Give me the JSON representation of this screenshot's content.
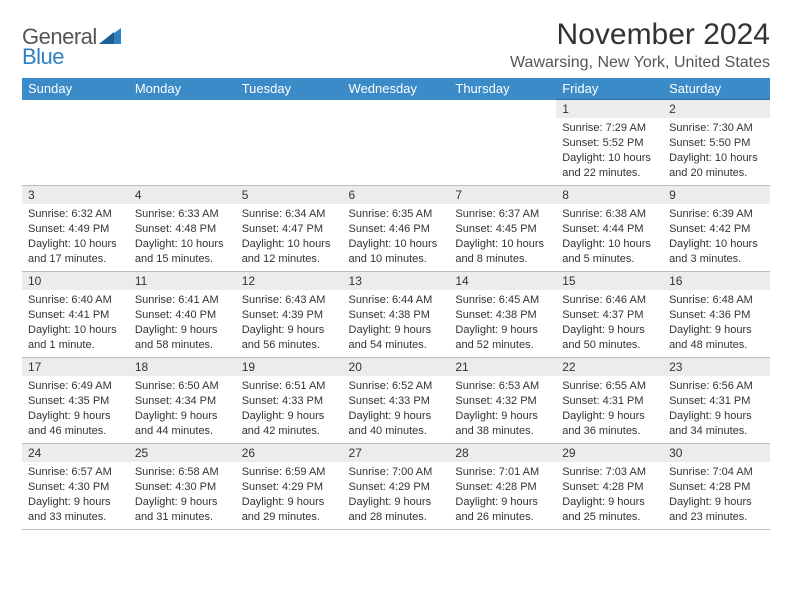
{
  "brand": {
    "part1": "General",
    "part2": "Blue"
  },
  "title": "November 2024",
  "location": "Wawarsing, New York, United States",
  "colors": {
    "header_bg": "#3b8bc8",
    "header_text": "#ffffff",
    "rule_strong": "#2f6fa0",
    "rule_light": "#bdbdbd",
    "daynum_bg": "#ececec",
    "logo_grey": "#555555",
    "logo_blue": "#2f80c2"
  },
  "weekdays": [
    "Sunday",
    "Monday",
    "Tuesday",
    "Wednesday",
    "Thursday",
    "Friday",
    "Saturday"
  ],
  "weeks": [
    [
      null,
      null,
      null,
      null,
      null,
      {
        "n": "1",
        "sunrise": "Sunrise: 7:29 AM",
        "sunset": "Sunset: 5:52 PM",
        "dayl1": "Daylight: 10 hours",
        "dayl2": "and 22 minutes."
      },
      {
        "n": "2",
        "sunrise": "Sunrise: 7:30 AM",
        "sunset": "Sunset: 5:50 PM",
        "dayl1": "Daylight: 10 hours",
        "dayl2": "and 20 minutes."
      }
    ],
    [
      {
        "n": "3",
        "sunrise": "Sunrise: 6:32 AM",
        "sunset": "Sunset: 4:49 PM",
        "dayl1": "Daylight: 10 hours",
        "dayl2": "and 17 minutes."
      },
      {
        "n": "4",
        "sunrise": "Sunrise: 6:33 AM",
        "sunset": "Sunset: 4:48 PM",
        "dayl1": "Daylight: 10 hours",
        "dayl2": "and 15 minutes."
      },
      {
        "n": "5",
        "sunrise": "Sunrise: 6:34 AM",
        "sunset": "Sunset: 4:47 PM",
        "dayl1": "Daylight: 10 hours",
        "dayl2": "and 12 minutes."
      },
      {
        "n": "6",
        "sunrise": "Sunrise: 6:35 AM",
        "sunset": "Sunset: 4:46 PM",
        "dayl1": "Daylight: 10 hours",
        "dayl2": "and 10 minutes."
      },
      {
        "n": "7",
        "sunrise": "Sunrise: 6:37 AM",
        "sunset": "Sunset: 4:45 PM",
        "dayl1": "Daylight: 10 hours",
        "dayl2": "and 8 minutes."
      },
      {
        "n": "8",
        "sunrise": "Sunrise: 6:38 AM",
        "sunset": "Sunset: 4:44 PM",
        "dayl1": "Daylight: 10 hours",
        "dayl2": "and 5 minutes."
      },
      {
        "n": "9",
        "sunrise": "Sunrise: 6:39 AM",
        "sunset": "Sunset: 4:42 PM",
        "dayl1": "Daylight: 10 hours",
        "dayl2": "and 3 minutes."
      }
    ],
    [
      {
        "n": "10",
        "sunrise": "Sunrise: 6:40 AM",
        "sunset": "Sunset: 4:41 PM",
        "dayl1": "Daylight: 10 hours",
        "dayl2": "and 1 minute."
      },
      {
        "n": "11",
        "sunrise": "Sunrise: 6:41 AM",
        "sunset": "Sunset: 4:40 PM",
        "dayl1": "Daylight: 9 hours",
        "dayl2": "and 58 minutes."
      },
      {
        "n": "12",
        "sunrise": "Sunrise: 6:43 AM",
        "sunset": "Sunset: 4:39 PM",
        "dayl1": "Daylight: 9 hours",
        "dayl2": "and 56 minutes."
      },
      {
        "n": "13",
        "sunrise": "Sunrise: 6:44 AM",
        "sunset": "Sunset: 4:38 PM",
        "dayl1": "Daylight: 9 hours",
        "dayl2": "and 54 minutes."
      },
      {
        "n": "14",
        "sunrise": "Sunrise: 6:45 AM",
        "sunset": "Sunset: 4:38 PM",
        "dayl1": "Daylight: 9 hours",
        "dayl2": "and 52 minutes."
      },
      {
        "n": "15",
        "sunrise": "Sunrise: 6:46 AM",
        "sunset": "Sunset: 4:37 PM",
        "dayl1": "Daylight: 9 hours",
        "dayl2": "and 50 minutes."
      },
      {
        "n": "16",
        "sunrise": "Sunrise: 6:48 AM",
        "sunset": "Sunset: 4:36 PM",
        "dayl1": "Daylight: 9 hours",
        "dayl2": "and 48 minutes."
      }
    ],
    [
      {
        "n": "17",
        "sunrise": "Sunrise: 6:49 AM",
        "sunset": "Sunset: 4:35 PM",
        "dayl1": "Daylight: 9 hours",
        "dayl2": "and 46 minutes."
      },
      {
        "n": "18",
        "sunrise": "Sunrise: 6:50 AM",
        "sunset": "Sunset: 4:34 PM",
        "dayl1": "Daylight: 9 hours",
        "dayl2": "and 44 minutes."
      },
      {
        "n": "19",
        "sunrise": "Sunrise: 6:51 AM",
        "sunset": "Sunset: 4:33 PM",
        "dayl1": "Daylight: 9 hours",
        "dayl2": "and 42 minutes."
      },
      {
        "n": "20",
        "sunrise": "Sunrise: 6:52 AM",
        "sunset": "Sunset: 4:33 PM",
        "dayl1": "Daylight: 9 hours",
        "dayl2": "and 40 minutes."
      },
      {
        "n": "21",
        "sunrise": "Sunrise: 6:53 AM",
        "sunset": "Sunset: 4:32 PM",
        "dayl1": "Daylight: 9 hours",
        "dayl2": "and 38 minutes."
      },
      {
        "n": "22",
        "sunrise": "Sunrise: 6:55 AM",
        "sunset": "Sunset: 4:31 PM",
        "dayl1": "Daylight: 9 hours",
        "dayl2": "and 36 minutes."
      },
      {
        "n": "23",
        "sunrise": "Sunrise: 6:56 AM",
        "sunset": "Sunset: 4:31 PM",
        "dayl1": "Daylight: 9 hours",
        "dayl2": "and 34 minutes."
      }
    ],
    [
      {
        "n": "24",
        "sunrise": "Sunrise: 6:57 AM",
        "sunset": "Sunset: 4:30 PM",
        "dayl1": "Daylight: 9 hours",
        "dayl2": "and 33 minutes."
      },
      {
        "n": "25",
        "sunrise": "Sunrise: 6:58 AM",
        "sunset": "Sunset: 4:30 PM",
        "dayl1": "Daylight: 9 hours",
        "dayl2": "and 31 minutes."
      },
      {
        "n": "26",
        "sunrise": "Sunrise: 6:59 AM",
        "sunset": "Sunset: 4:29 PM",
        "dayl1": "Daylight: 9 hours",
        "dayl2": "and 29 minutes."
      },
      {
        "n": "27",
        "sunrise": "Sunrise: 7:00 AM",
        "sunset": "Sunset: 4:29 PM",
        "dayl1": "Daylight: 9 hours",
        "dayl2": "and 28 minutes."
      },
      {
        "n": "28",
        "sunrise": "Sunrise: 7:01 AM",
        "sunset": "Sunset: 4:28 PM",
        "dayl1": "Daylight: 9 hours",
        "dayl2": "and 26 minutes."
      },
      {
        "n": "29",
        "sunrise": "Sunrise: 7:03 AM",
        "sunset": "Sunset: 4:28 PM",
        "dayl1": "Daylight: 9 hours",
        "dayl2": "and 25 minutes."
      },
      {
        "n": "30",
        "sunrise": "Sunrise: 7:04 AM",
        "sunset": "Sunset: 4:28 PM",
        "dayl1": "Daylight: 9 hours",
        "dayl2": "and 23 minutes."
      }
    ]
  ]
}
